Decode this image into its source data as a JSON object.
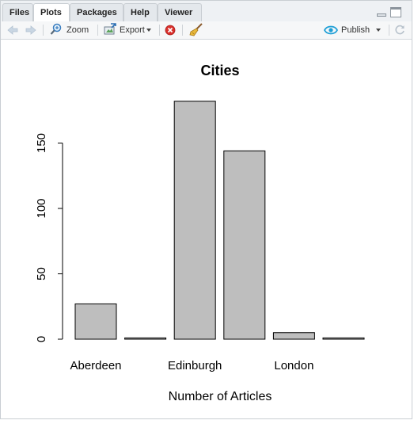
{
  "tabs": [
    {
      "label": "Files"
    },
    {
      "label": "Plots"
    },
    {
      "label": "Packages"
    },
    {
      "label": "Help"
    },
    {
      "label": "Viewer"
    }
  ],
  "toolbar": {
    "zoom_label": "Zoom",
    "export_label": "Export",
    "publish_label": "Publish"
  },
  "colors": {
    "bar_fill": "#bebebe",
    "bar_stroke": "#000000",
    "publish_icon": "#1f9fd6",
    "remove_icon": "#d9302c"
  },
  "chart_data": {
    "type": "bar",
    "title": "Cities",
    "xlabel": "Number of Articles",
    "ylabel": "",
    "categories": [
      "Aberdeen",
      "",
      "Edinburgh",
      "",
      "London",
      ""
    ],
    "values": [
      27,
      1,
      182,
      144,
      5,
      1
    ],
    "ylim": [
      0,
      182
    ],
    "y_ticks": [
      0,
      50,
      100,
      150
    ],
    "grid": false
  }
}
